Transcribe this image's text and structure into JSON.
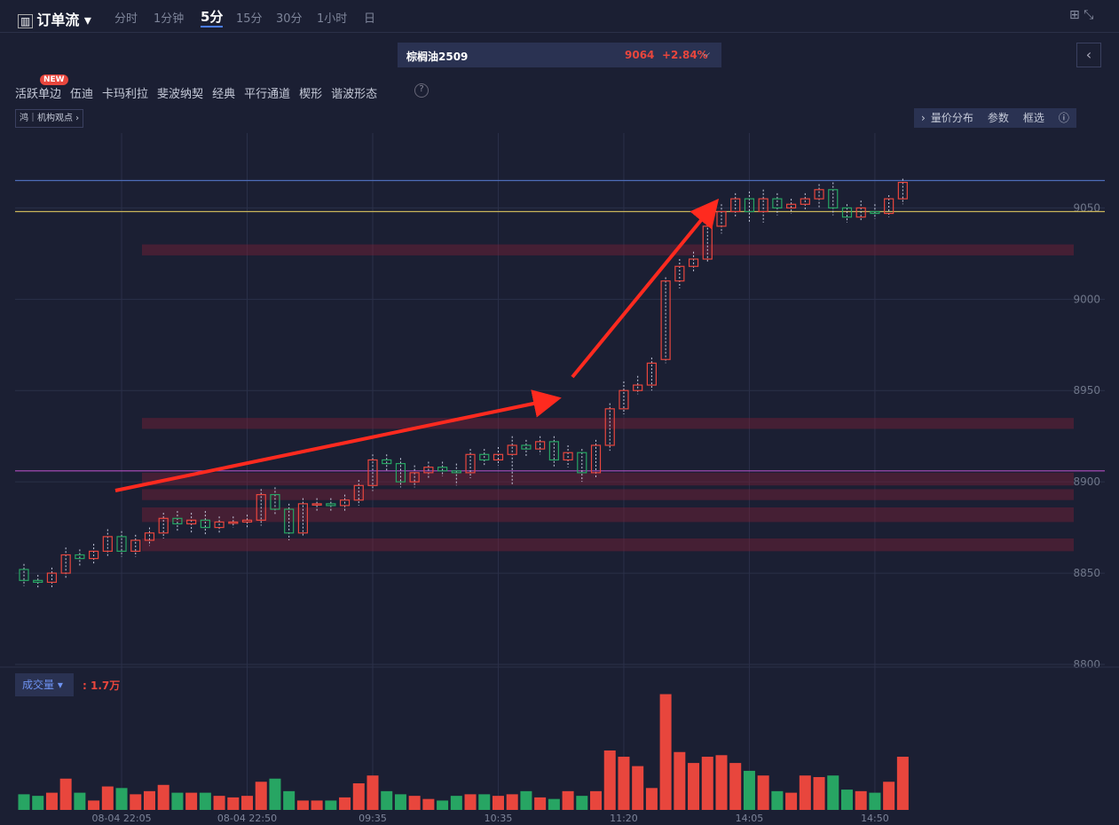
{
  "header": {
    "title": "订单流",
    "timeframes": [
      "分时",
      "1分钟",
      "5分",
      "15分",
      "30分",
      "1小时",
      "日"
    ],
    "active": 2
  },
  "instrument": {
    "name": "棕榈油2509",
    "price": "9064",
    "change": "+2.84%"
  },
  "tools": {
    "badge": "NEW",
    "items": [
      "活跃单边",
      "伍迪",
      "卡玛利拉",
      "斐波纳契",
      "经典",
      "平行通道",
      "楔形",
      "谐波形态"
    ]
  },
  "tag": {
    "icon": "鸿",
    "label": "机构观点"
  },
  "panel_buttons": [
    "量价分布",
    "参数",
    "框选"
  ],
  "chart_data": [
    {
      "type": "candlestick",
      "colors": {
        "up": "#e8463d",
        "down": "#27a563"
      },
      "categories": [
        null,
        null,
        null,
        null,
        null,
        null,
        null,
        "08-04 22:05",
        null,
        null,
        null,
        null,
        null,
        null,
        null,
        null,
        "08-04 22:50",
        null,
        null,
        null,
        null,
        null,
        null,
        null,
        null,
        "09:35",
        null,
        null,
        null,
        null,
        null,
        null,
        null,
        null,
        "10:35",
        null,
        null,
        null,
        null,
        null,
        null,
        null,
        null,
        "11:20",
        null,
        null,
        null,
        null,
        null,
        null,
        null,
        null,
        "14:05",
        null,
        null,
        null,
        null,
        null,
        null,
        null,
        null,
        "14:50",
        null,
        null
      ],
      "open": [
        8852,
        8846,
        8845,
        8850,
        8860,
        8858,
        8862,
        8870,
        8862,
        8868,
        8872,
        8880,
        8877,
        8879,
        8875,
        8878,
        8878,
        8879,
        8893,
        8885,
        8872,
        8888,
        8888,
        8887,
        8890,
        8898,
        8912,
        8910,
        8900,
        8905,
        8908,
        8906,
        8905,
        8915,
        8912,
        8915,
        8920,
        8918,
        8922,
        8912,
        8916,
        8905,
        8920,
        8940,
        8950,
        8953,
        8967,
        9010,
        9018,
        9022,
        9040,
        9048,
        9055,
        9048,
        9055,
        9050,
        9052,
        9055,
        9060,
        9050,
        9045,
        9048,
        9047,
        9055
      ],
      "high": [
        8855,
        8849,
        8853,
        8864,
        8863,
        8866,
        8874,
        8873,
        8871,
        8875,
        8883,
        8884,
        8883,
        8884,
        8881,
        8881,
        8882,
        8896,
        8897,
        8888,
        8891,
        8891,
        8891,
        8893,
        8901,
        8915,
        8915,
        8913,
        8909,
        8911,
        8911,
        8910,
        8918,
        8918,
        8919,
        8925,
        8923,
        8925,
        8925,
        8920,
        8918,
        8923,
        8943,
        8955,
        8958,
        8968,
        9012,
        9022,
        9026,
        9043,
        9052,
        9058,
        9059,
        9060,
        9058,
        9055,
        9058,
        9063,
        9064,
        9052,
        9054,
        9052,
        9057,
        9066
      ],
      "low": [
        8843,
        8842,
        8842,
        8847,
        8854,
        8855,
        8859,
        8859,
        8859,
        8865,
        8869,
        8873,
        8872,
        8871,
        8872,
        8875,
        8875,
        8876,
        8882,
        8868,
        8870,
        8884,
        8884,
        8884,
        8887,
        8895,
        8906,
        8897,
        8897,
        8902,
        8903,
        8898,
        8902,
        8909,
        8909,
        8898,
        8914,
        8915,
        8908,
        8908,
        8900,
        8902,
        8917,
        8937,
        8948,
        8950,
        8965,
        9006,
        9015,
        9020,
        9036,
        9045,
        9042,
        9042,
        9046,
        9047,
        9049,
        9050,
        9046,
        9042,
        9043,
        9044,
        9045,
        9052
      ],
      "close": [
        8846,
        8845,
        8850,
        8860,
        8858,
        8862,
        8870,
        8862,
        8868,
        8872,
        8880,
        8877,
        8879,
        8875,
        8878,
        8878,
        8879,
        8893,
        8885,
        8872,
        8888,
        8888,
        8887,
        8890,
        8898,
        8912,
        8910,
        8900,
        8905,
        8908,
        8906,
        8905,
        8915,
        8912,
        8915,
        8920,
        8918,
        8922,
        8912,
        8916,
        8905,
        8920,
        8940,
        8950,
        8953,
        8965,
        9010,
        9018,
        9022,
        9040,
        9048,
        9055,
        9048,
        9055,
        9050,
        9052,
        9055,
        9060,
        9050,
        9045,
        9050,
        9047,
        9055,
        9064
      ],
      "ylim": [
        8800,
        9091
      ],
      "yticks": [
        8800,
        8850,
        8900,
        8950,
        9000,
        9050
      ],
      "hlines": [
        {
          "value": 9065,
          "color": "#4d6db8"
        },
        {
          "value": 9048,
          "color": "#c9b45a"
        },
        {
          "value": 8906,
          "color": "#b14fc0"
        }
      ],
      "zones": [
        [
          9024,
          9030
        ],
        [
          8929,
          8935
        ],
        [
          8898,
          8905
        ],
        [
          8890,
          8896
        ],
        [
          8878,
          8886
        ],
        [
          8862,
          8869
        ]
      ]
    },
    {
      "type": "bar",
      "title": "成交量",
      "subtitle": ": 1.7万",
      "values": [
        0.5,
        0.45,
        0.55,
        1.0,
        0.55,
        0.3,
        0.75,
        0.7,
        0.5,
        0.6,
        0.8,
        0.55,
        0.55,
        0.55,
        0.45,
        0.4,
        0.45,
        0.9,
        1.0,
        0.6,
        0.3,
        0.3,
        0.3,
        0.4,
        0.85,
        1.1,
        0.6,
        0.5,
        0.45,
        0.35,
        0.3,
        0.45,
        0.5,
        0.5,
        0.45,
        0.5,
        0.6,
        0.4,
        0.35,
        0.6,
        0.45,
        0.6,
        1.9,
        1.7,
        1.4,
        0.7,
        3.7,
        1.85,
        1.5,
        1.7,
        1.75,
        1.5,
        1.25,
        1.1,
        0.6,
        0.55,
        1.1,
        1.05,
        1.1,
        0.65,
        0.6,
        0.55,
        0.9,
        1.7
      ],
      "ylim": [
        0,
        4.48
      ]
    }
  ]
}
